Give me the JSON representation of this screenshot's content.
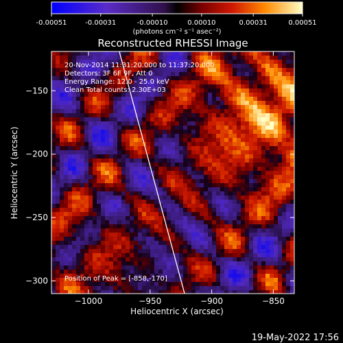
{
  "chart_data": {
    "type": "heatmap",
    "title": "Reconstructed RHESSI Image",
    "xlabel": "Heliocentric X (arcsec)",
    "ylabel": "Heliocentric Y (arcsec)",
    "xlim": [
      -1030,
      -833
    ],
    "ylim": [
      -310,
      -119
    ],
    "x_ticks": [
      -1000,
      -950,
      -900,
      -850
    ],
    "x_tick_labels": [
      "−1000",
      "−950",
      "−900",
      "−850"
    ],
    "y_ticks": [
      -150,
      -200,
      -250,
      -300
    ],
    "y_tick_labels": [
      "−150",
      "−200",
      "−250",
      "−300"
    ],
    "colorbar": {
      "range": [
        -0.00051,
        0.00051
      ],
      "tick_labels": [
        "-0.00051",
        "-0.00031",
        "-0.00010",
        "0.00010",
        "0.00031",
        "0.00051"
      ],
      "unit_label": "(photons cm⁻² s⁻¹ asec⁻²)"
    },
    "annotations": [
      "20-Nov-2014 11:31:20.000 to 11:37:20.000",
      "Detectors: 3F 6F 9F, Att 0",
      "Energy Range: 12.0 - 25.0 keV",
      "Clean    Total counts: 2.30E+03"
    ],
    "peak_label": "Position of Peak = [-858,-170]",
    "limb_line": {
      "x": [
        -975,
        -922
      ],
      "y": [
        -119,
        -310
      ]
    },
    "peak": {
      "x": -858,
      "y": -170
    }
  },
  "footer": {
    "timestamp": "19-May-2022 17:56"
  },
  "colors": {
    "background": "#000000",
    "text": "#ffffff"
  }
}
